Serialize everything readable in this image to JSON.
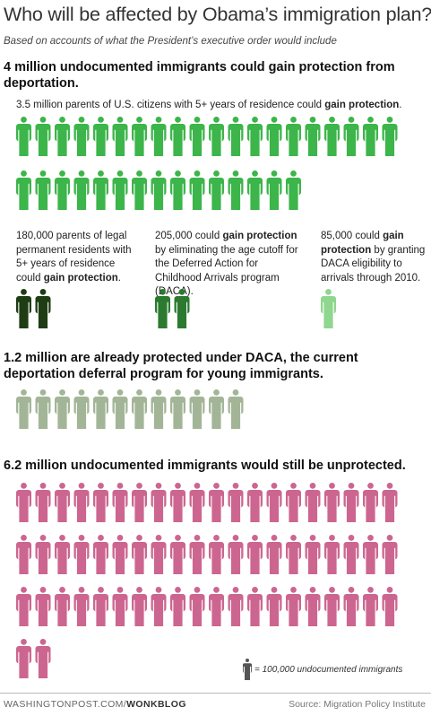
{
  "title": "Who will be affected by Obama’s immigration plan?",
  "subtitle": "Based on accounts of what the President’s executive order would include",
  "sections": {
    "gain_heading": "4 million undocumented immigrants could gain protection from deportation.",
    "daca_heading": "1.2 million are already protected under DACA, the current deportation deferral program for young immigrants.",
    "unprotected_heading": "6.2 million undocumented immigrants would still be unprotected."
  },
  "notes": {
    "parents_citizens": {
      "pre": "3.5 million parents of U.S. citizens with 5+ years of residence could ",
      "bold": "gain protection",
      "post": "."
    },
    "parents_lpr": {
      "pre": "180,000 parents of legal permanent residents with 5+ years of residence could ",
      "bold": "gain protection",
      "post": "."
    },
    "age_cutoff": {
      "pre": "205,000 could ",
      "bold": "gain protection",
      "post": " by eliminating the age cutoff for the Deferred Action for Childhood Arrivals program (DACA)."
    },
    "daca_2010": {
      "pre": "85,000 could ",
      "bold": "gain protection",
      "post": " by granting DACA eligibility to arrivals through 2010."
    }
  },
  "legend": {
    "text": "= 100,000 undocumented immigrants",
    "icon": "person-icon",
    "color": "#555555"
  },
  "footer": {
    "site": "WASHINGTONPOST.COM/",
    "section": "WONKBLOG",
    "source": "Source: Migration Policy Institute"
  },
  "chart_data": {
    "type": "pictograph",
    "unit": "100,000 undocumented immigrants per figure",
    "groups": [
      {
        "key": "parents_citizens",
        "value": 3500000,
        "icons": 35,
        "color": "#3cb54a",
        "note": "3.5 million parents of U.S. citizens with 5+ years of residence could gain protection."
      },
      {
        "key": "parents_lpr",
        "value": 180000,
        "icons": 2,
        "color": "#1f3d14",
        "note": "180,000 parents of legal permanent residents with 5+ years of residence could gain protection."
      },
      {
        "key": "age_cutoff",
        "value": 205000,
        "icons": 2,
        "color": "#2b7a2f",
        "note": "205,000 could gain protection by eliminating the age cutoff for DACA."
      },
      {
        "key": "daca_2010",
        "value": 85000,
        "icons": 1,
        "color": "#8fd68f",
        "note": "85,000 could gain protection by granting DACA eligibility to arrivals through 2010."
      },
      {
        "key": "already_daca",
        "value": 1200000,
        "icons": 12,
        "color": "#a3b597",
        "note": "1.2 million are already protected under DACA."
      },
      {
        "key": "unprotected",
        "value": 6200000,
        "icons": 62,
        "color": "#cc6690",
        "note": "6.2 million undocumented immigrants would still be unprotected."
      }
    ]
  }
}
